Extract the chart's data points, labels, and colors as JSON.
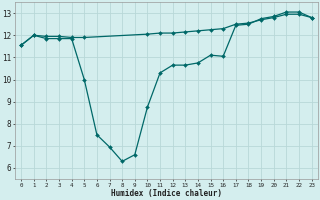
{
  "line1_x": [
    0,
    1,
    2,
    3,
    4,
    5,
    6,
    7,
    8,
    9,
    10,
    11,
    12,
    13,
    14,
    15,
    16,
    17,
    18,
    19,
    20,
    21,
    22,
    23
  ],
  "line1_y": [
    11.55,
    12.0,
    11.85,
    11.85,
    11.85,
    10.0,
    7.5,
    6.95,
    6.3,
    6.6,
    8.75,
    10.3,
    10.65,
    10.65,
    10.75,
    11.1,
    11.05,
    12.45,
    12.5,
    12.75,
    12.85,
    13.05,
    13.05,
    12.8
  ],
  "line2_x": [
    0,
    1,
    2,
    3,
    4,
    5,
    10,
    11,
    12,
    13,
    14,
    15,
    16,
    17,
    18,
    19,
    20,
    21,
    22,
    23
  ],
  "line2_y": [
    11.55,
    12.0,
    11.95,
    11.95,
    11.9,
    11.9,
    12.05,
    12.1,
    12.1,
    12.15,
    12.2,
    12.25,
    12.3,
    12.5,
    12.55,
    12.7,
    12.8,
    12.95,
    12.95,
    12.8
  ],
  "line_color": "#006868",
  "bg_color": "#d4eeee",
  "grid_color": "#b8d8d8",
  "xlabel": "Humidex (Indice chaleur)",
  "xlim": [
    -0.5,
    23.5
  ],
  "ylim": [
    5.5,
    13.5
  ],
  "yticks": [
    6,
    7,
    8,
    9,
    10,
    11,
    12,
    13
  ],
  "xticks": [
    0,
    1,
    2,
    3,
    4,
    5,
    6,
    7,
    8,
    9,
    10,
    11,
    12,
    13,
    14,
    15,
    16,
    17,
    18,
    19,
    20,
    21,
    22,
    23
  ],
  "xtick_labels": [
    "0",
    "1",
    "2",
    "3",
    "4",
    "5",
    "6",
    "7",
    "8",
    "9",
    "10",
    "11",
    "12",
    "13",
    "14",
    "15",
    "16",
    "17",
    "18",
    "19",
    "20",
    "21",
    "22",
    "23"
  ]
}
